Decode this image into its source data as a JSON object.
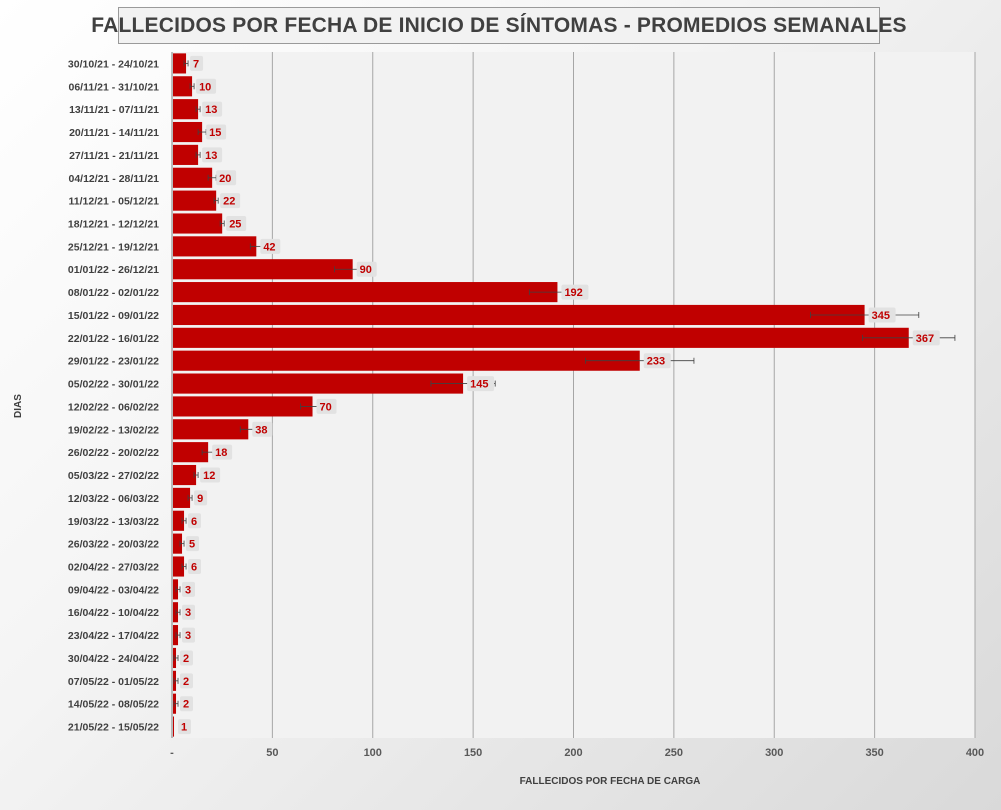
{
  "chart_data": {
    "type": "bar",
    "orientation": "horizontal",
    "title": "FALLECIDOS POR FECHA DE INICIO DE SÍNTOMAS - PROMEDIOS SEMANALES",
    "xlabel": "FALLECIDOS POR FECHA DE CARGA",
    "ylabel": "DIAS",
    "xlim": [
      0,
      400
    ],
    "x_ticks": [
      "-",
      "50",
      "100",
      "150",
      "200",
      "250",
      "300",
      "350",
      "400"
    ],
    "grid": "vertical",
    "bar_color": "#c00000",
    "label_color": "#c00000",
    "categories": [
      "30/10/21 - 24/10/21",
      "06/11/21 - 31/10/21",
      "13/11/21 - 07/11/21",
      "20/11/21 - 14/11/21",
      "27/11/21 - 21/11/21",
      "04/12/21 - 28/11/21",
      "11/12/21 - 05/12/21",
      "18/12/21 - 12/12/21",
      "25/12/21 - 19/12/21",
      "01/01/22 - 26/12/21",
      "08/01/22 - 02/01/22",
      "15/01/22 - 09/01/22",
      "22/01/22 - 16/01/22",
      "29/01/22 - 23/01/22",
      "05/02/22 - 30/01/22",
      "12/02/22 - 06/02/22",
      "19/02/22 - 13/02/22",
      "26/02/22 - 20/02/22",
      "05/03/22 - 27/02/22",
      "12/03/22 - 06/03/22",
      "19/03/22 - 13/03/22",
      "26/03/22 - 20/03/22",
      "02/04/22 - 27/03/22",
      "09/04/22 - 03/04/22",
      "16/04/22 - 10/04/22",
      "23/04/22 - 17/04/22",
      "30/04/22 - 24/04/22",
      "07/05/22 - 01/05/22",
      "14/05/22 - 08/05/22",
      "21/05/22 - 15/05/22"
    ],
    "values": [
      7,
      10,
      13,
      15,
      13,
      20,
      22,
      25,
      42,
      90,
      192,
      345,
      367,
      233,
      145,
      70,
      38,
      18,
      12,
      9,
      6,
      5,
      6,
      3,
      3,
      3,
      2,
      2,
      2,
      1
    ],
    "error": [
      1,
      1,
      1,
      2,
      1,
      2,
      1,
      1,
      3,
      9,
      14,
      27,
      23,
      27,
      16,
      6,
      4,
      3,
      1,
      1,
      1,
      1,
      1,
      1,
      1,
      1,
      1,
      1,
      1,
      0
    ]
  }
}
